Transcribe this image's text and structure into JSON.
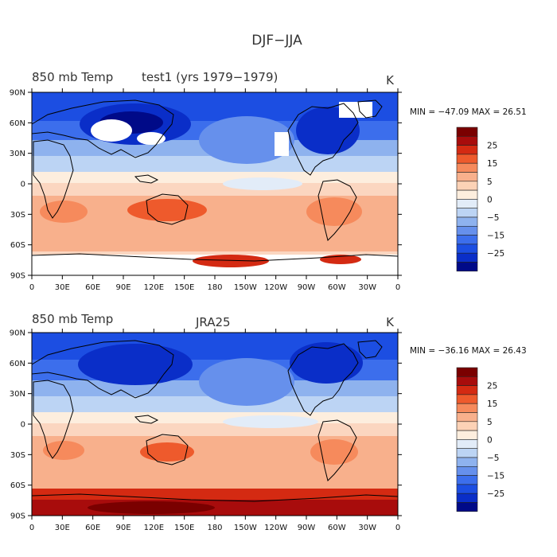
{
  "figure": {
    "title": "DJF−JJA"
  },
  "panels": [
    {
      "left_label": "850 mb Temp",
      "center_label": "test1 (yrs 1979−1979)",
      "units": "K",
      "stats": "MIN = −47.09  MAX =  26.51"
    },
    {
      "left_label": "850 mb Temp",
      "center_label": "JRA25",
      "units": "K",
      "stats": "MIN = −36.16  MAX =  26.43"
    }
  ],
  "axes": {
    "lat_ticks": [
      "90N",
      "60N",
      "30N",
      "0",
      "30S",
      "60S",
      "90S"
    ],
    "lon_ticks": [
      "0",
      "30E",
      "60E",
      "90E",
      "120E",
      "150E",
      "180",
      "150W",
      "120W",
      "90W",
      "60W",
      "30W",
      "0"
    ]
  },
  "colorbar": {
    "labels": [
      "25",
      "15",
      "5",
      "0",
      "−5",
      "−15",
      "−25"
    ],
    "colors": [
      "#7a0000",
      "#a80c0c",
      "#d42a12",
      "#ee5a2c",
      "#f68a5c",
      "#f8b08c",
      "#fcd2b6",
      "#fdeede",
      "#e2ecf8",
      "#bcd4f4",
      "#8eb2ee",
      "#6690ec",
      "#3c6eec",
      "#1c4ee2",
      "#0a2ec8",
      "#000a88"
    ]
  },
  "chart_data": [
    {
      "type": "heatmap",
      "title": "DJF−JJA",
      "subtitle": "850 mb Temp  test1 (yrs 1979−1979)",
      "units": "K",
      "min": -47.09,
      "max": 26.51,
      "xlim": [
        0,
        360
      ],
      "ylim": [
        -90,
        90
      ],
      "contour_levels": [
        -35,
        -30,
        -25,
        -20,
        -15,
        -10,
        -5,
        -2,
        0,
        2,
        5,
        10,
        15,
        20,
        25,
        30
      ]
    },
    {
      "type": "heatmap",
      "title": "DJF−JJA",
      "subtitle": "850 mb Temp  JRA25",
      "units": "K",
      "min": -36.16,
      "max": 26.43,
      "xlim": [
        0,
        360
      ],
      "ylim": [
        -90,
        90
      ],
      "contour_levels": [
        -35,
        -30,
        -25,
        -20,
        -15,
        -10,
        -5,
        -2,
        0,
        2,
        5,
        10,
        15,
        20,
        25,
        30
      ]
    }
  ]
}
